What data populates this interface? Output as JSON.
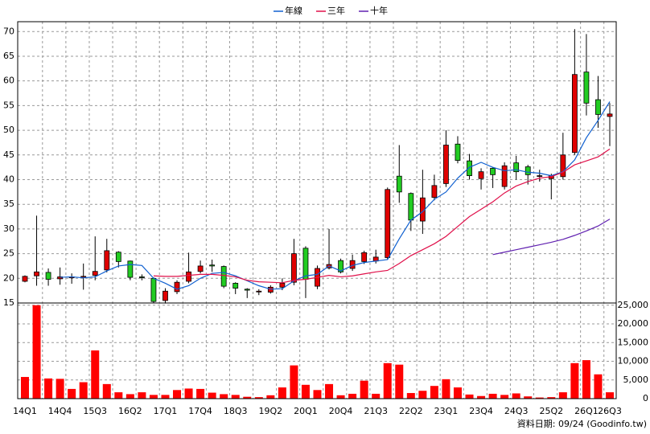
{
  "chart_data": [
    {
      "type": "candlestick",
      "categories": [
        "14Q1",
        null,
        null,
        "14Q4",
        null,
        null,
        "15Q3",
        null,
        null,
        "16Q2",
        null,
        null,
        "17Q1",
        null,
        null,
        "17Q4",
        null,
        null,
        "18Q3",
        null,
        null,
        "19Q2",
        null,
        null,
        "20Q1",
        null,
        null,
        "20Q4",
        null,
        null,
        "21Q3",
        null,
        null,
        "22Q2",
        null,
        null,
        "23Q1",
        null,
        null,
        "23Q4",
        null,
        null,
        "24Q3",
        null,
        null,
        "25Q2",
        null,
        null,
        "26Q1",
        null,
        "26Q3"
      ],
      "open": [
        19.4,
        20.5,
        21.2,
        19.9,
        20.1,
        20.2,
        20.6,
        21.7,
        25.3,
        23.5,
        20.3,
        20,
        15.5,
        17.3,
        19.4,
        21.4,
        22.7,
        22.4,
        19,
        17.8,
        17.3,
        17.2,
        18.2,
        19.2,
        26.1,
        18.4,
        22.1,
        23.6,
        22,
        23.4,
        23.5,
        24.2,
        40.7,
        37.2,
        31.6,
        36.4,
        39.2,
        47.2,
        43.8,
        40.2,
        42.3,
        38.6,
        43.4,
        42.6,
        40.7,
        40.2,
        40.6,
        45.5,
        61.8,
        56.2,
        52.8
      ],
      "high": [
        20.6,
        32.7,
        22,
        22.2,
        21,
        23,
        28.5,
        28,
        25.5,
        23.6,
        20.8,
        20.2,
        18,
        19.6,
        25.2,
        23.6,
        23.8,
        22.6,
        19.2,
        18,
        17.8,
        18.6,
        20,
        28,
        26.5,
        22.6,
        30,
        24,
        24.8,
        25.6,
        25.8,
        38.4,
        47,
        37.4,
        42,
        41,
        50,
        48.8,
        45.2,
        42.3,
        42.5,
        43.5,
        44.8,
        43,
        42,
        41.2,
        49.5,
        70.5,
        69.5,
        61,
        55.5
      ],
      "low": [
        19.2,
        18.5,
        18.5,
        18.7,
        18.9,
        17.7,
        19.6,
        21.2,
        22.2,
        19.6,
        19.6,
        15,
        14.9,
        16.8,
        19,
        21,
        21.3,
        18,
        16.8,
        16,
        16.6,
        16.9,
        17.6,
        18.6,
        16,
        17.8,
        21.8,
        21,
        21.5,
        22.9,
        23,
        23.8,
        35.3,
        29.6,
        29,
        35.8,
        38.5,
        43.3,
        40,
        38,
        38.3,
        38,
        40,
        39,
        39.6,
        36,
        40,
        45,
        53,
        50.5,
        46.8
      ],
      "close": [
        20.4,
        21.3,
        19.8,
        20.3,
        20.3,
        20.4,
        21.4,
        25.6,
        23.4,
        20.2,
        20.2,
        15.3,
        17.4,
        19.2,
        21.3,
        22.5,
        22.5,
        18.4,
        18,
        17.6,
        17.4,
        18.2,
        19,
        25,
        19.8,
        22,
        22.8,
        21.3,
        23.6,
        25.2,
        24.3,
        38,
        37.5,
        31.8,
        36.3,
        38.8,
        47,
        43.9,
        40.8,
        41.6,
        41,
        42.8,
        41.6,
        41,
        40.8,
        40.8,
        45,
        61.3,
        55.5,
        53.2,
        53.3
      ],
      "up_color": "#e00000",
      "down_color": "#22cc22",
      "series": [
        {
          "name": "年線",
          "color": "#1060d0",
          "values": [
            null,
            null,
            null,
            20.2,
            20.3,
            20.1,
            20.3,
            21.5,
            22.5,
            22.8,
            22.6,
            20,
            19,
            17.8,
            18.5,
            20,
            21,
            21.2,
            20.5,
            19.5,
            18.5,
            17.8,
            17.9,
            19.5,
            20.5,
            20.8,
            22.5,
            21.5,
            22.6,
            23.2,
            23.5,
            23.8,
            28,
            31.8,
            33.5,
            36,
            37.5,
            40.3,
            42.5,
            43.5,
            42.5,
            41.8,
            42,
            41.5,
            41.3,
            40.8,
            41.6,
            44,
            48.5,
            52,
            55.8
          ]
        },
        {
          "name": "三年",
          "color": "#e0104a",
          "values": [
            null,
            null,
            null,
            null,
            null,
            null,
            null,
            null,
            null,
            null,
            null,
            20.5,
            20.4,
            20.4,
            20.6,
            20.8,
            20.8,
            20.6,
            20.3,
            19.6,
            19.3,
            19.2,
            19.1,
            19.6,
            19.8,
            20.2,
            20.6,
            20.3,
            20.5,
            20.9,
            21.3,
            21.6,
            23,
            24.6,
            25.8,
            27,
            28.5,
            30.5,
            32.5,
            34,
            35.5,
            37.3,
            38.7,
            39.6,
            40.3,
            40.6,
            41.5,
            43,
            43.8,
            44.6,
            46.2
          ]
        },
        {
          "name": "十年",
          "color": "#6020b0",
          "values": [
            null,
            null,
            null,
            null,
            null,
            null,
            null,
            null,
            null,
            null,
            null,
            null,
            null,
            null,
            null,
            null,
            null,
            null,
            null,
            null,
            null,
            null,
            null,
            null,
            null,
            null,
            null,
            null,
            null,
            null,
            null,
            null,
            null,
            null,
            null,
            null,
            null,
            null,
            null,
            null,
            24.8,
            25.3,
            25.8,
            26.3,
            26.8,
            27.3,
            27.9,
            28.7,
            29.6,
            30.6,
            32
          ]
        }
      ],
      "ylim": [
        15,
        72
      ],
      "yticks": [
        15,
        20,
        25,
        30,
        35,
        40,
        45,
        50,
        55,
        60,
        65,
        70
      ],
      "grid": true
    },
    {
      "type": "bar",
      "values": [
        5800,
        25000,
        5400,
        5300,
        2600,
        4400,
        12900,
        3900,
        1700,
        1200,
        1700,
        1000,
        1000,
        2300,
        2700,
        2600,
        1600,
        1200,
        1000,
        500,
        400,
        900,
        3000,
        8900,
        3700,
        2300,
        3900,
        900,
        1300,
        4800,
        1300,
        9500,
        9100,
        1500,
        2100,
        3400,
        5200,
        3000,
        1100,
        700,
        1300,
        1000,
        1400,
        600,
        300,
        400,
        1700,
        9500,
        10300,
        6500,
        1700
      ],
      "color": "#ff0000",
      "ylim": [
        0,
        25600
      ],
      "yticks": [
        0,
        {
          "value": 5000,
          "label": "5,000"
        },
        {
          "value": 10000,
          "label": "10,000"
        },
        {
          "value": 15000,
          "label": "15,000"
        },
        {
          "value": 20000,
          "label": "20,000"
        },
        {
          "value": 25000,
          "label": "25,000"
        }
      ],
      "grid": true,
      "note": "資料日期: 09/24 (Goodinfo.tw)"
    }
  ]
}
